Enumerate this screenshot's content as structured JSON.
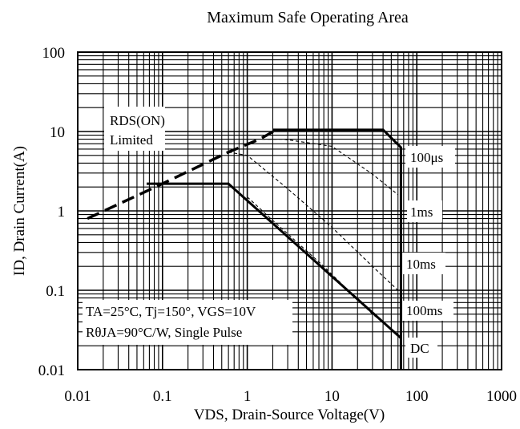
{
  "chart_data": {
    "type": "line",
    "title": "Maximum Safe Operating Area",
    "xlabel": "VDS, Drain-Source Voltage(V)",
    "ylabel": "ID, Drain Current(A)",
    "x_scale": "log",
    "y_scale": "log",
    "xlim": [
      0.01,
      1000
    ],
    "ylim": [
      0.01,
      100
    ],
    "x_ticks": [
      "0.01",
      "0.1",
      "1",
      "10",
      "100",
      "1000"
    ],
    "y_ticks": [
      "0.01",
      "0.1",
      "1",
      "10",
      "100"
    ],
    "grid": true,
    "series": [
      {
        "name": "RDS(ON) Limited",
        "style": "dashed-thick",
        "x": [
          0.013,
          0.1,
          0.6,
          1.4,
          2.2
        ],
        "y": [
          0.8,
          2.2,
          5.5,
          8.0,
          10.5
        ]
      },
      {
        "name": "100μs",
        "style": "solid-thick",
        "x": [
          2.0,
          40,
          65,
          65
        ],
        "y": [
          10.5,
          10.5,
          6.3,
          0.01
        ]
      },
      {
        "name": "1ms",
        "style": "dashed-thin",
        "x": [
          1.5,
          2.7,
          10,
          30,
          60
        ],
        "y": [
          8.0,
          8.0,
          6.5,
          2.9,
          1.6
        ]
      },
      {
        "name": "10ms",
        "style": "dashed-thin",
        "x": [
          0.6,
          1.0,
          3.0,
          10,
          30,
          60
        ],
        "y": [
          5.5,
          5.0,
          1.9,
          0.62,
          0.2,
          0.1
        ]
      },
      {
        "name": "100ms",
        "style": "dashed-thin",
        "x": [
          1.0,
          2.0,
          8.0,
          30,
          60
        ],
        "y": [
          1.5,
          0.76,
          0.2,
          0.05,
          0.028
        ]
      },
      {
        "name": "DC",
        "style": "solid-thick",
        "x": [
          0.065,
          0.6,
          65
        ],
        "y": [
          2.2,
          2.2,
          0.025
        ]
      }
    ],
    "annotations": {
      "rdson_1": "RDS(ON)",
      "rdson_2": "Limited",
      "curve_100us": "100μs",
      "curve_1ms": "1ms",
      "curve_10ms": "10ms",
      "curve_100ms": "100ms",
      "curve_dc": "DC",
      "conditions_1": "TA=25°C, Tj=150°, VGS=10V",
      "conditions_2": "RθJA=90°C/W, Single Pulse"
    }
  }
}
